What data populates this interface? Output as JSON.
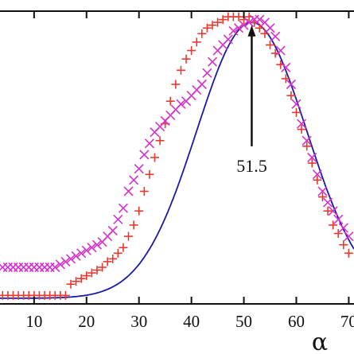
{
  "chart_data": {
    "type": "scatter",
    "title": "",
    "xlabel": "α",
    "ylabel": "",
    "xlim": [
      3.5,
      71
    ],
    "ylim": [
      0,
      1.04
    ],
    "grid": false,
    "legend": "none",
    "x_ticks": [
      10,
      20,
      30,
      40,
      50,
      60,
      70
    ],
    "x_tick_labels": [
      "10",
      "20",
      "30",
      "40",
      "50",
      "60",
      "70"
    ],
    "annotation": {
      "text": "51.5",
      "x": 51.5,
      "arrow_from_y": 0.56,
      "arrow_to_y": 0.99
    },
    "series": [
      {
        "marker": "plus",
        "color": "#e8392f",
        "points": [
          [
            4,
            0.03
          ],
          [
            5,
            0.03
          ],
          [
            6,
            0.03
          ],
          [
            7,
            0.03
          ],
          [
            8,
            0.03
          ],
          [
            9,
            0.03
          ],
          [
            10,
            0.03
          ],
          [
            11,
            0.03
          ],
          [
            12,
            0.03
          ],
          [
            13,
            0.03
          ],
          [
            14,
            0.03
          ],
          [
            15,
            0.03
          ],
          [
            16,
            0.03
          ],
          [
            17,
            0.07
          ],
          [
            18,
            0.08
          ],
          [
            19,
            0.09
          ],
          [
            20,
            0.1
          ],
          [
            21,
            0.11
          ],
          [
            22,
            0.12
          ],
          [
            23,
            0.13
          ],
          [
            24,
            0.15
          ],
          [
            25,
            0.16
          ],
          [
            26,
            0.18
          ],
          [
            27,
            0.2
          ],
          [
            28,
            0.24
          ],
          [
            29,
            0.28
          ],
          [
            30,
            0.33
          ],
          [
            31,
            0.4
          ],
          [
            32,
            0.46
          ],
          [
            33,
            0.52
          ],
          [
            34,
            0.58
          ],
          [
            35,
            0.64
          ],
          [
            36,
            0.72
          ],
          [
            37,
            0.78
          ],
          [
            38,
            0.83
          ],
          [
            39,
            0.87
          ],
          [
            40,
            0.9
          ],
          [
            41,
            0.93
          ],
          [
            42,
            0.96
          ],
          [
            43,
            0.98
          ],
          [
            44,
            0.99
          ],
          [
            45,
            1.0
          ],
          [
            46,
            1.01
          ],
          [
            47,
            1.02
          ],
          [
            48,
            1.02
          ],
          [
            49,
            1.02
          ],
          [
            50,
            1.01
          ],
          [
            51,
            1.02
          ],
          [
            52,
            1.0
          ],
          [
            53,
            0.98
          ],
          [
            54,
            0.96
          ],
          [
            55,
            0.92
          ],
          [
            56,
            0.89
          ],
          [
            57,
            0.85
          ],
          [
            58,
            0.8
          ],
          [
            59,
            0.74
          ],
          [
            60,
            0.68
          ],
          [
            61,
            0.62
          ],
          [
            62,
            0.56
          ],
          [
            63,
            0.5
          ],
          [
            64,
            0.44
          ],
          [
            65,
            0.38
          ],
          [
            66,
            0.33
          ],
          [
            67,
            0.28
          ],
          [
            68,
            0.25
          ],
          [
            69,
            0.21
          ],
          [
            70,
            0.18
          ]
        ]
      },
      {
        "marker": "cross",
        "color": "#d633c8",
        "points": [
          [
            4,
            0.13
          ],
          [
            5,
            0.13
          ],
          [
            6,
            0.13
          ],
          [
            7,
            0.13
          ],
          [
            8,
            0.13
          ],
          [
            9,
            0.13
          ],
          [
            10,
            0.13
          ],
          [
            11,
            0.13
          ],
          [
            12,
            0.13
          ],
          [
            13,
            0.13
          ],
          [
            14,
            0.13
          ],
          [
            15,
            0.14
          ],
          [
            16,
            0.15
          ],
          [
            17,
            0.16
          ],
          [
            18,
            0.17
          ],
          [
            19,
            0.18
          ],
          [
            20,
            0.19
          ],
          [
            21,
            0.2
          ],
          [
            22,
            0.21
          ],
          [
            23,
            0.22
          ],
          [
            24,
            0.24
          ],
          [
            25,
            0.26
          ],
          [
            26,
            0.3
          ],
          [
            27,
            0.34
          ],
          [
            28,
            0.4
          ],
          [
            29,
            0.44
          ],
          [
            30,
            0.48
          ],
          [
            31,
            0.53
          ],
          [
            32,
            0.57
          ],
          [
            33,
            0.61
          ],
          [
            34,
            0.63
          ],
          [
            35,
            0.65
          ],
          [
            36,
            0.67
          ],
          [
            37,
            0.69
          ],
          [
            38,
            0.71
          ],
          [
            39,
            0.72
          ],
          [
            40,
            0.74
          ],
          [
            41,
            0.76
          ],
          [
            42,
            0.78
          ],
          [
            43,
            0.82
          ],
          [
            44,
            0.86
          ],
          [
            45,
            0.9
          ],
          [
            46,
            0.92
          ],
          [
            47,
            0.94
          ],
          [
            48,
            0.97
          ],
          [
            49,
            0.98
          ],
          [
            50,
            0.99
          ],
          [
            51,
            1.0
          ],
          [
            52,
            1.01
          ],
          [
            53,
            1.01
          ],
          [
            54,
            1.0
          ],
          [
            55,
            0.98
          ],
          [
            56,
            0.95
          ],
          [
            57,
            0.9
          ],
          [
            58,
            0.84
          ],
          [
            59,
            0.78
          ],
          [
            60,
            0.71
          ],
          [
            61,
            0.64
          ],
          [
            62,
            0.58
          ],
          [
            63,
            0.52
          ],
          [
            64,
            0.46
          ],
          [
            65,
            0.4
          ],
          [
            66,
            0.36
          ],
          [
            67,
            0.33
          ],
          [
            68,
            0.3
          ],
          [
            69,
            0.27
          ],
          [
            70,
            0.24
          ]
        ]
      }
    ],
    "fit_curve": {
      "color": "#1a1aa6",
      "type": "gaussian",
      "center": 51.5,
      "sigma": 10.5,
      "amplitude": 1.0,
      "baseline": 0.02
    }
  }
}
